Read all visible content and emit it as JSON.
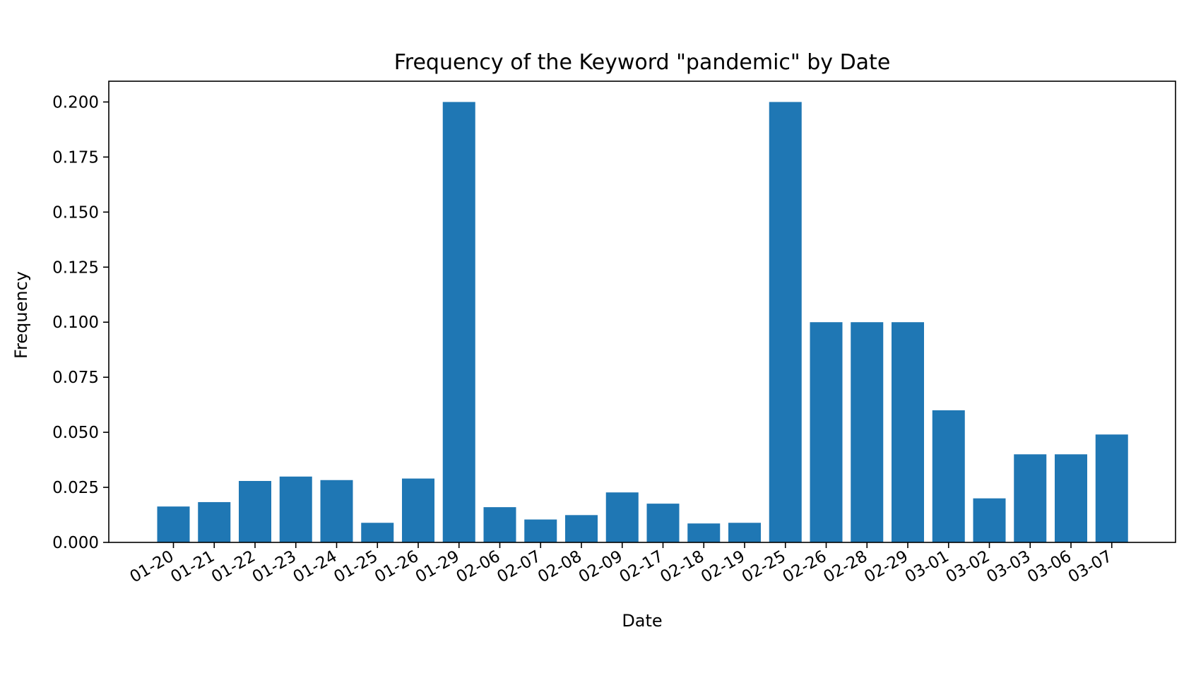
{
  "chart_data": {
    "type": "bar",
    "title": "Frequency of the Keyword \"pandemic\" by Date",
    "xlabel": "Date",
    "ylabel": "Frequency",
    "categories": [
      "01-20",
      "01-21",
      "01-22",
      "01-23",
      "01-24",
      "01-25",
      "01-26",
      "01-29",
      "02-06",
      "02-07",
      "02-08",
      "02-09",
      "02-17",
      "02-18",
      "02-19",
      "02-25",
      "02-26",
      "02-28",
      "02-29",
      "03-01",
      "03-02",
      "03-03",
      "03-06",
      "03-07"
    ],
    "values": [
      0.0163,
      0.0183,
      0.0279,
      0.0299,
      0.0283,
      0.0089,
      0.029,
      0.2,
      0.016,
      0.0104,
      0.0124,
      0.0227,
      0.0176,
      0.0086,
      0.0089,
      0.2,
      0.1,
      0.1,
      0.1,
      0.06,
      0.02,
      0.04,
      0.04,
      0.049
    ],
    "yticks": [
      "0.000",
      "0.025",
      "0.050",
      "0.075",
      "0.100",
      "0.125",
      "0.150",
      "0.175",
      "0.200"
    ],
    "ylim": [
      0,
      0.21
    ],
    "bar_color": "#1f77b4",
    "grid": false,
    "legend": "none"
  }
}
